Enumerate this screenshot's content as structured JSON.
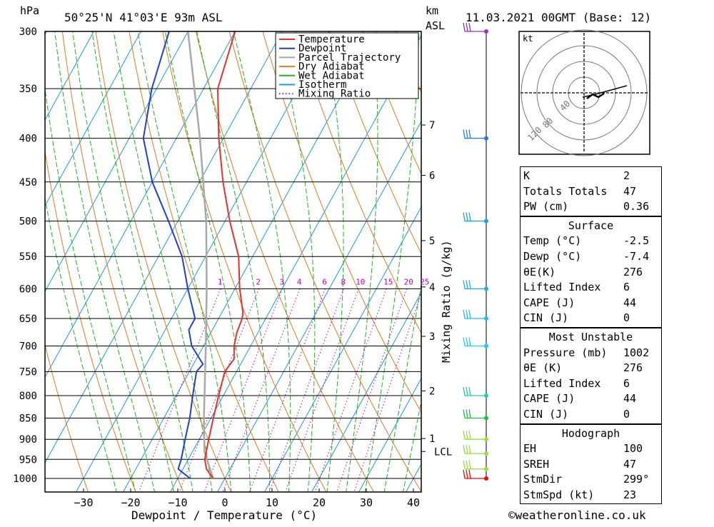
{
  "header": {
    "hpa_label": "hPa",
    "location": "50°25'N  41°03'E  93m  ASL",
    "km_label": "km",
    "asl_label": "ASL",
    "datetime": "11.03.2021  00GMT  (Base: 12)"
  },
  "footer": {
    "copyright": "©weatheronline.co.uk"
  },
  "chart_data": {
    "type": "line",
    "subtype": "skew-T log-P",
    "xlabel": "Dewpoint / Temperature (°C)",
    "ylabel": "hPa",
    "right_ylabel": "Mixing Ratio (g/kg)",
    "x_ticks": [
      -30,
      -20,
      -10,
      0,
      10,
      20,
      30,
      40
    ],
    "pressure_ticks": [
      300,
      350,
      400,
      450,
      500,
      550,
      600,
      650,
      700,
      750,
      800,
      850,
      900,
      950,
      1000
    ],
    "height_ticks_km": [
      {
        "km": "1",
        "p": 898
      },
      {
        "km": "2",
        "p": 790
      },
      {
        "km": "3",
        "p": 682
      },
      {
        "km": "4",
        "p": 597
      },
      {
        "km": "5",
        "p": 527
      },
      {
        "km": "6",
        "p": 442
      },
      {
        "km": "7",
        "p": 386
      }
    ],
    "lcl": {
      "label": "LCL",
      "p": 930
    },
    "mixing_ratio_labels": [
      "1",
      "2",
      "3",
      "4",
      "6",
      "8",
      "10",
      "15",
      "20",
      "25"
    ],
    "legend": {
      "placement": "top-center",
      "entries": [
        {
          "label": "Temperature",
          "color": "#e8302a",
          "style": "solid"
        },
        {
          "label": "Dewpoint",
          "color": "#1f3fd0",
          "style": "solid"
        },
        {
          "label": "Parcel Trajectory",
          "color": "#a8a8a8",
          "style": "solid"
        },
        {
          "label": "Dry Adiabat",
          "color": "#e07a20",
          "style": "solid"
        },
        {
          "label": "Wet Adiabat",
          "color": "#25b025",
          "style": "solid"
        },
        {
          "label": "Isotherm",
          "color": "#1e9ad8",
          "style": "solid"
        },
        {
          "label": "Mixing Ratio",
          "color": "#c000c0",
          "style": "dotted"
        }
      ]
    },
    "series": [
      {
        "name": "Temperature",
        "points": [
          [
            1000,
            -2.5
          ],
          [
            975,
            -5
          ],
          [
            950,
            -6.5
          ],
          [
            900,
            -8
          ],
          [
            850,
            -9.5
          ],
          [
            800,
            -11
          ],
          [
            750,
            -12.5
          ],
          [
            725,
            -12.0
          ],
          [
            700,
            -13.5
          ],
          [
            675,
            -14.5
          ],
          [
            650,
            -15.0
          ],
          [
            640,
            -15.5
          ],
          [
            600,
            -19
          ],
          [
            550,
            -23
          ],
          [
            500,
            -29
          ],
          [
            450,
            -35
          ],
          [
            400,
            -41
          ],
          [
            350,
            -47
          ],
          [
            300,
            -50
          ]
        ]
      },
      {
        "name": "Dewpoint",
        "points": [
          [
            1000,
            -7.4
          ],
          [
            975,
            -11
          ],
          [
            950,
            -11.5
          ],
          [
            900,
            -13
          ],
          [
            850,
            -14.5
          ],
          [
            800,
            -16.5
          ],
          [
            750,
            -18.5
          ],
          [
            735,
            -18.0
          ],
          [
            700,
            -22.5
          ],
          [
            670,
            -25
          ],
          [
            650,
            -25
          ],
          [
            600,
            -30
          ],
          [
            550,
            -35
          ],
          [
            500,
            -42
          ],
          [
            450,
            -50
          ],
          [
            400,
            -57
          ],
          [
            350,
            -61
          ],
          [
            300,
            -64
          ]
        ]
      },
      {
        "name": "Parcel Trajectory",
        "points": [
          [
            1000,
            -2.5
          ],
          [
            930,
            -7.5
          ],
          [
            850,
            -11.5
          ],
          [
            700,
            -19.5
          ],
          [
            600,
            -26
          ],
          [
            500,
            -34
          ],
          [
            400,
            -45
          ],
          [
            300,
            -60
          ]
        ]
      }
    ],
    "wind_barbs": [
      {
        "p": 1000,
        "color": "#ff0000"
      },
      {
        "p": 975,
        "color": "#99dd44"
      },
      {
        "p": 935,
        "color": "#99dd44"
      },
      {
        "p": 900,
        "color": "#99dd44"
      },
      {
        "p": 850,
        "color": "#22bb44"
      },
      {
        "p": 800,
        "color": "#22ccaa"
      },
      {
        "p": 700,
        "color": "#22ccee"
      },
      {
        "p": 650,
        "color": "#22bbee"
      },
      {
        "p": 600,
        "color": "#22aaee"
      },
      {
        "p": 500,
        "color": "#2299ee"
      },
      {
        "p": 400,
        "color": "#2277ee"
      },
      {
        "p": 300,
        "color": "#8833cc"
      }
    ],
    "hodograph": {
      "unit": "kt",
      "ring_labels": [
        "40",
        "80",
        "120"
      ]
    }
  },
  "indices": {
    "top": [
      {
        "label": "K",
        "value": "2"
      },
      {
        "label": "Totals Totals",
        "value": "47"
      },
      {
        "label": "PW (cm)",
        "value": "0.36"
      }
    ],
    "surface": {
      "title": "Surface",
      "rows": [
        {
          "label": "Temp (°C)",
          "value": "-2.5"
        },
        {
          "label": "Dewp (°C)",
          "value": "-7.4"
        },
        {
          "label": "θE(K)",
          "value": "276"
        },
        {
          "label": "Lifted Index",
          "value": "6"
        },
        {
          "label": "CAPE (J)",
          "value": "44"
        },
        {
          "label": "CIN (J)",
          "value": "0"
        }
      ]
    },
    "most_unstable": {
      "title": "Most Unstable",
      "rows": [
        {
          "label": "Pressure (mb)",
          "value": "1002"
        },
        {
          "label": "θE (K)",
          "value": "276"
        },
        {
          "label": "Lifted Index",
          "value": "6"
        },
        {
          "label": "CAPE (J)",
          "value": "44"
        },
        {
          "label": "CIN (J)",
          "value": "0"
        }
      ]
    },
    "hodograph": {
      "title": "Hodograph",
      "rows": [
        {
          "label": "EH",
          "value": "100"
        },
        {
          "label": "SREH",
          "value": "47"
        },
        {
          "label": "StmDir",
          "value": "299°"
        },
        {
          "label": "StmSpd (kt)",
          "value": "23"
        }
      ]
    }
  }
}
